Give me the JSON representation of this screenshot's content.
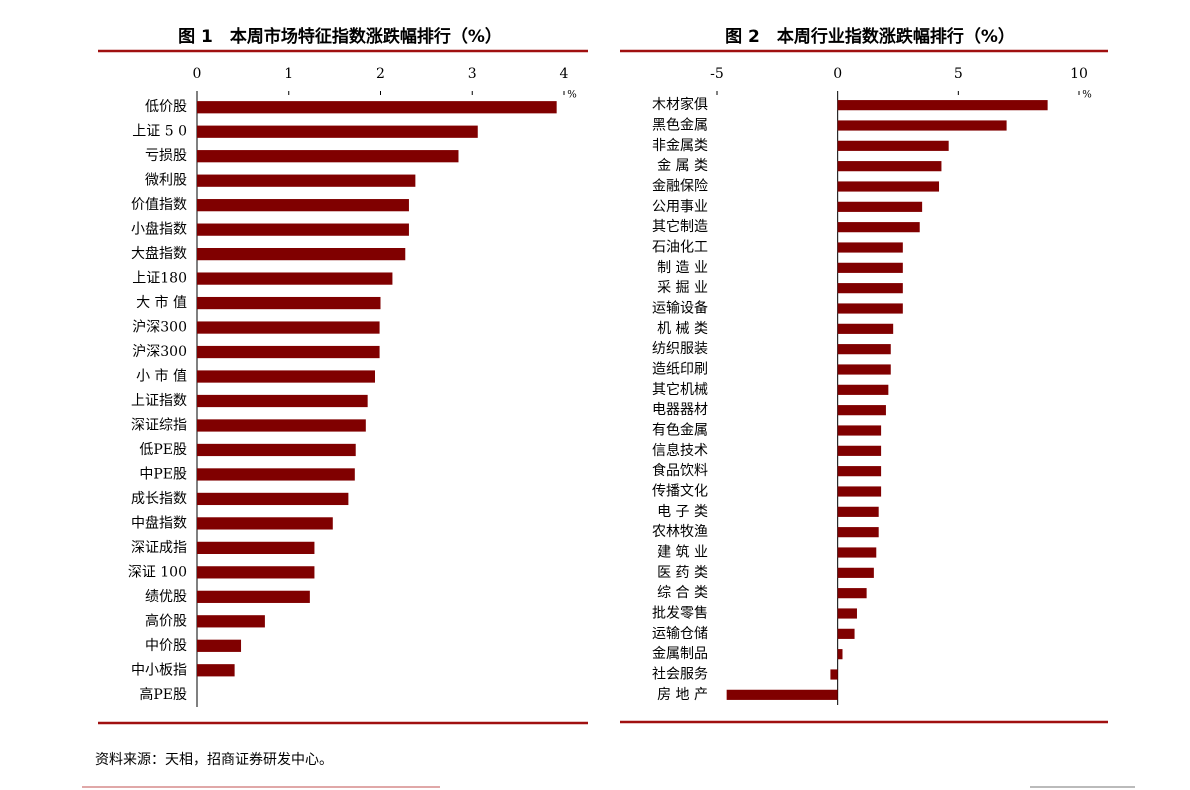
{
  "chart_data": [
    {
      "type": "bar",
      "orientation": "horizontal",
      "title": "图 1　本周市场特征指数涨跌幅排行（%）",
      "unit": "%",
      "color": "#800000",
      "categories": [
        "低价股",
        "上证 5 0",
        "亏损股",
        "微利股",
        "价值指数",
        "小盘指数",
        "大盘指数",
        "上证180",
        "大 市 值",
        "沪深300",
        "沪深300",
        "小 市 值",
        "上证指数",
        "深证综指",
        "低PE股",
        "中PE股",
        "成长指数",
        "中盘指数",
        "深证成指",
        "深证 100",
        "绩优股",
        "高价股",
        "中价股",
        "中小板指",
        "高PE股"
      ],
      "values": [
        3.92,
        3.06,
        2.85,
        2.38,
        2.31,
        2.31,
        2.27,
        2.13,
        2.0,
        1.99,
        1.99,
        1.94,
        1.86,
        1.84,
        1.73,
        1.72,
        1.65,
        1.48,
        1.28,
        1.28,
        1.23,
        0.74,
        0.48,
        0.41,
        0
      ],
      "xlim": [
        0,
        4
      ],
      "xticks": [
        0,
        1,
        2,
        3,
        4
      ]
    },
    {
      "type": "bar",
      "orientation": "horizontal",
      "title": "图 2　本周行业指数涨跌幅排行（%）",
      "unit": "%",
      "color": "#800000",
      "categories": [
        "木材家俱",
        "黑色金属",
        "非金属类",
        "金 属 类",
        "金融保险",
        "公用事业",
        "其它制造",
        "石油化工",
        "制 造 业",
        "采 掘 业",
        "运输设备",
        "机 械 类",
        "纺织服装",
        "造纸印刷",
        "其它机械",
        "电器器材",
        "有色金属",
        "信息技术",
        "食品饮料",
        "传播文化",
        "电 子 类",
        "农林牧渔",
        "建 筑 业",
        "医 药 类",
        "综 合 类",
        "批发零售",
        "运输仓储",
        "金属制品",
        "社会服务",
        "房 地 产"
      ],
      "values": [
        8.7,
        7.0,
        4.6,
        4.3,
        4.2,
        3.5,
        3.4,
        2.7,
        2.7,
        2.7,
        2.7,
        2.3,
        2.2,
        2.2,
        2.1,
        2.0,
        1.8,
        1.8,
        1.8,
        1.8,
        1.7,
        1.7,
        1.6,
        1.5,
        1.2,
        0.8,
        0.7,
        0.2,
        -0.3,
        -4.6
      ],
      "xlim": [
        -5,
        10
      ],
      "xticks": [
        -5,
        0,
        5,
        10
      ]
    }
  ],
  "source": "资料来源：天相，招商证券研发中心。"
}
